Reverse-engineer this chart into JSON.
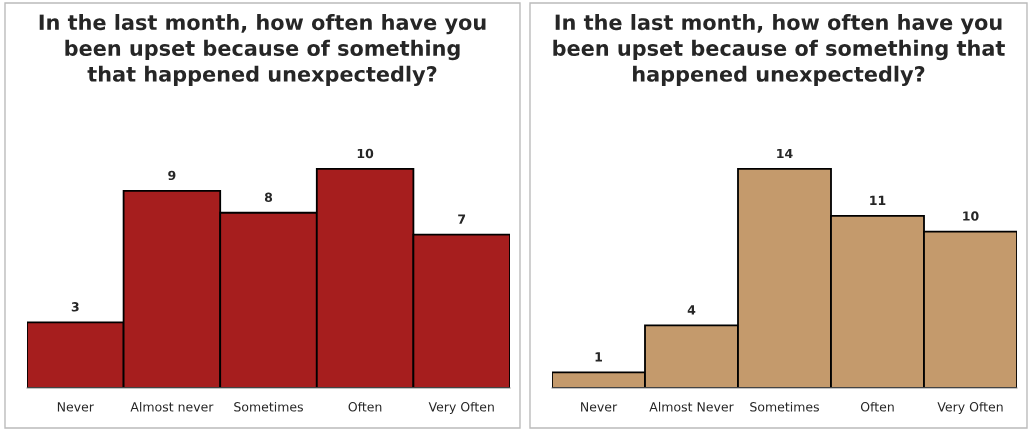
{
  "chart_data": [
    {
      "type": "bar",
      "title": "In the last month, how often have you\nbeen upset because of something\nthat happened unexpectedly?",
      "categories": [
        "Never",
        "Almost never",
        "Sometimes",
        "Often",
        "Very Often"
      ],
      "values": [
        3,
        9,
        8,
        10,
        7
      ],
      "color": "#a61e1e",
      "data_labels": true,
      "grid": false,
      "legend": false
    },
    {
      "type": "bar",
      "title": "In the last month, how often have you\nbeen upset because of something that\nhappened unexpectedly?",
      "categories": [
        "Never",
        "Almost Never",
        "Sometimes",
        "Often",
        "Very Often"
      ],
      "values": [
        1,
        4,
        14,
        11,
        10
      ],
      "color": "#c49a6c",
      "data_labels": true,
      "grid": false,
      "legend": false
    }
  ]
}
